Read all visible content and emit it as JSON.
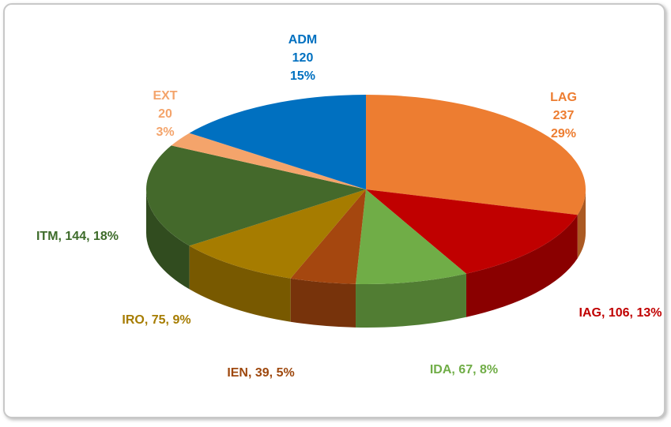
{
  "chart_data": {
    "type": "pie3d",
    "categories": [
      "LAG",
      "IAG",
      "IDA",
      "IEN",
      "IRO",
      "ITM",
      "EXT",
      "ADM"
    ],
    "values": [
      237,
      106,
      67,
      39,
      75,
      144,
      20,
      120
    ],
    "data_labels": [
      [
        "LAG",
        "237",
        "29%"
      ],
      [
        "IAG, 106, 13%"
      ],
      [
        "IDA, 67, 8%"
      ],
      [
        "IEN, 39, 5%"
      ],
      [
        "IRO, 75, 9%"
      ],
      [
        "ITM, 144, 18%"
      ],
      [
        "EXT",
        "20",
        "3%"
      ],
      [
        "ADM",
        "120",
        "15%"
      ]
    ],
    "colors": [
      "#ED7D31",
      "#C00000",
      "#70AD47",
      "#A5470F",
      "#A67C00",
      "#44692B",
      "#F4A46B",
      "#0070C0"
    ],
    "label_colors": [
      "#ED7D31",
      "#C00000",
      "#70AD47",
      "#9E480E",
      "#A67C00",
      "#3D6B2A",
      "#F4A46B",
      "#0070C0"
    ]
  }
}
